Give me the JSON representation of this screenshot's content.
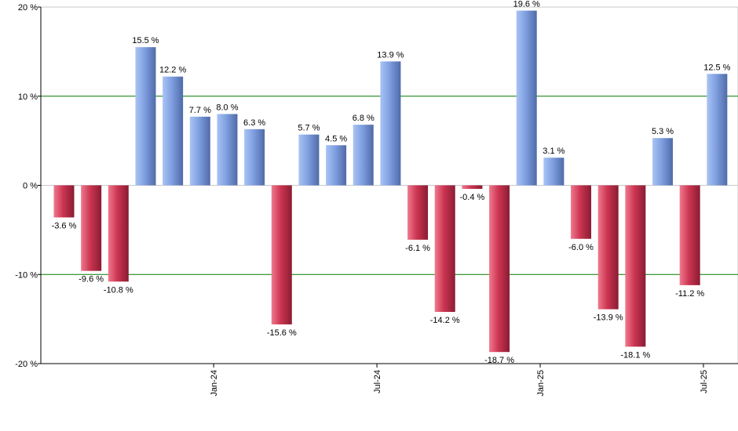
{
  "chart_data": {
    "type": "bar",
    "title": "",
    "xlabel": "",
    "ylabel": "",
    "ylim": [
      -20,
      20
    ],
    "y_ticks": [
      20,
      10,
      0,
      -10,
      -20
    ],
    "y_tick_labels": [
      "20 %",
      "10 %",
      "0 %",
      "-10 %",
      "-20 %"
    ],
    "x_tick_labels": [
      "Jan-24",
      "Jul-24",
      "Jan-25",
      "Jul-25"
    ],
    "x_tick_after_bar": [
      5,
      11,
      17,
      23
    ],
    "values": [
      -3.6,
      -9.6,
      -10.8,
      15.5,
      12.2,
      7.7,
      8.0,
      6.3,
      -15.6,
      5.7,
      4.5,
      6.8,
      13.9,
      -6.1,
      -14.2,
      -0.4,
      -18.7,
      19.6,
      3.1,
      -6.0,
      -13.9,
      -18.1,
      5.3,
      -11.2,
      12.5
    ],
    "labels": [
      "-3.6 %",
      "-9.6 %",
      "-10.8 %",
      "15.5 %",
      "12.2 %",
      "7.7 %",
      "8.0 %",
      "6.3 %",
      "-15.6 %",
      "5.7 %",
      "4.5 %",
      "6.8 %",
      "13.9 %",
      "-6.1 %",
      "-14.2 %",
      "-0.4 %",
      "-18.7 %",
      "19.6 %",
      "3.1 %",
      "-6.0 %",
      "-13.9 %",
      "-18.1 %",
      "5.3 %",
      "-11.2 %",
      "12.5 %"
    ],
    "grid": "horizontal lines at ±10 %",
    "colors": {
      "positive": "#6f92d8",
      "negative": "#c8304e",
      "gridline": "#007a00",
      "axis": "#000000"
    }
  }
}
